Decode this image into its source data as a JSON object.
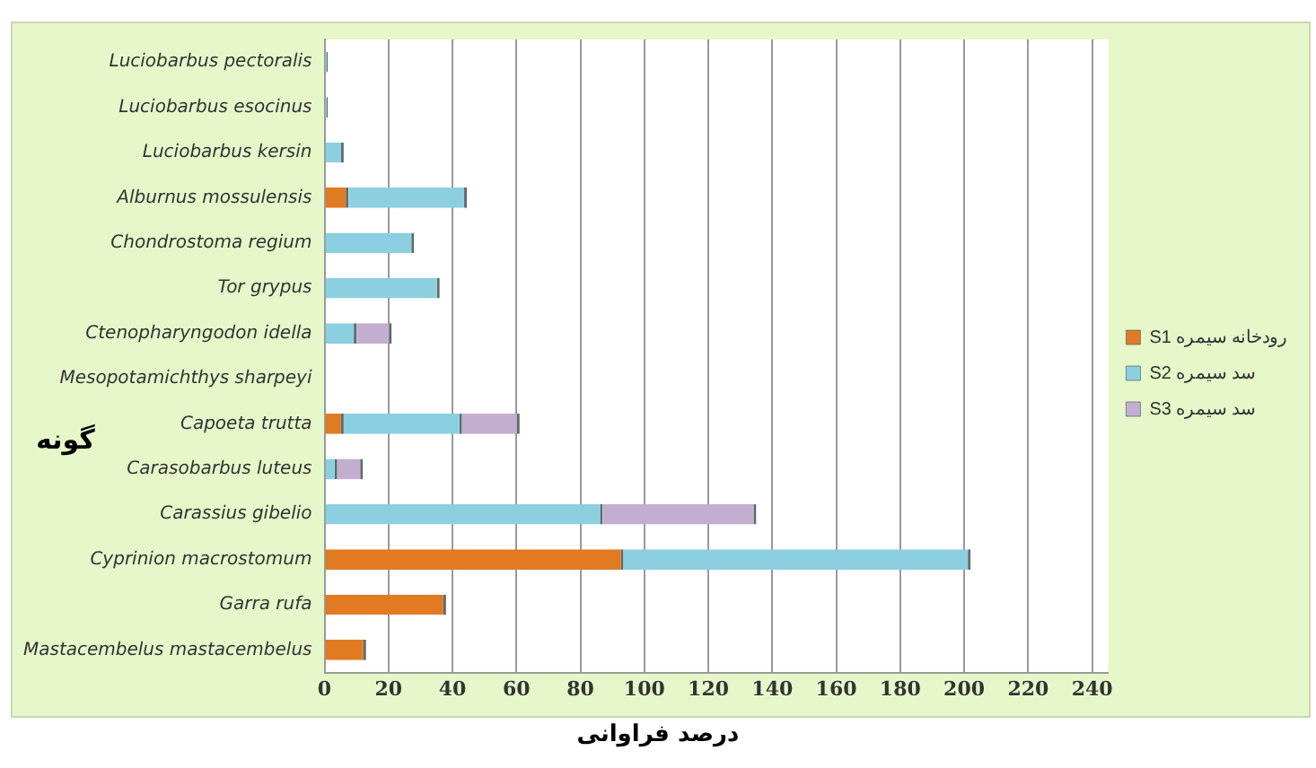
{
  "chart_data": {
    "type": "bar",
    "orientation": "horizontal",
    "stacked": true,
    "xlabel": "درصد فراوانی",
    "ylabel": "گونه",
    "categories": [
      "Luciobarbus pectoralis",
      "Luciobarbus esocinus",
      "Luciobarbus kersin",
      "Alburnus mossulensis",
      "Chondrostoma regium",
      "Tor grypus",
      "Ctenopharyngodon idella",
      "Mesopotamichthys sharpeyi",
      "Capoeta trutta",
      "Carasobarbus luteus",
      "Carassius gibelio",
      "Cyprinion macrostomum",
      "Garra rufa",
      "Mastacembelus mastacembelus"
    ],
    "series": [
      {
        "name": "S1 رودخانه سیمره",
        "color": "#e07b24",
        "values": [
          0,
          0,
          0,
          7.5,
          0,
          0,
          0,
          0,
          6,
          0,
          0,
          93.5,
          38,
          13
        ]
      },
      {
        "name": "S2 سد سیمره",
        "color": "#8ccfe0",
        "values": [
          1,
          1,
          6,
          37,
          28,
          36,
          10,
          0,
          37,
          4,
          87,
          108.5,
          0,
          0
        ]
      },
      {
        "name": "S3 سد سیمره",
        "color": "#c3aed0",
        "values": [
          0,
          0,
          0,
          0,
          0,
          0,
          11,
          0,
          18,
          8,
          48,
          0,
          0,
          0
        ]
      }
    ],
    "xlim": [
      0,
      245
    ],
    "xticks": [
      0,
      20,
      40,
      60,
      80,
      100,
      120,
      140,
      160,
      180,
      200,
      220,
      240
    ],
    "grid": "x",
    "legend": "right"
  }
}
